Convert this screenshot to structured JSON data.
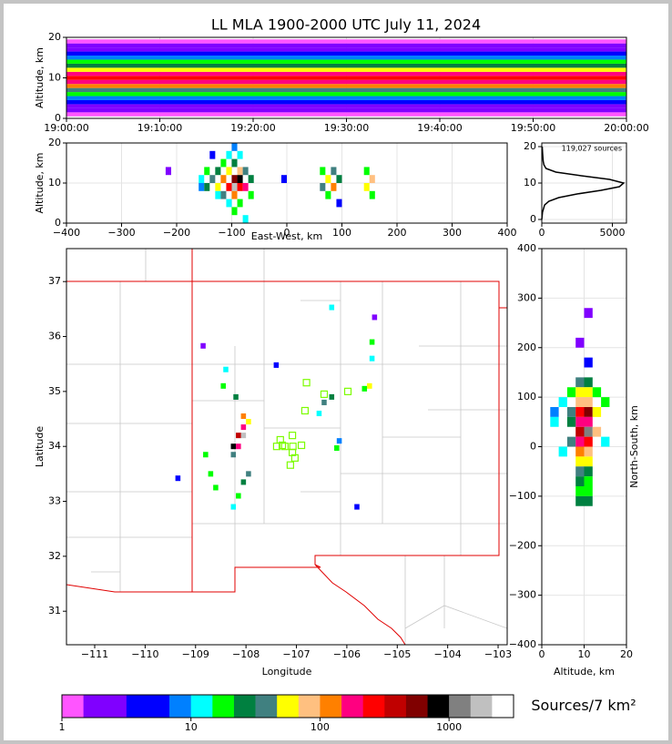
{
  "chart_data": [
    {
      "type": "heatmap",
      "title": "LL MLA 1900-2000 UTC July 11, 2024",
      "ylabel": "Altitude, km",
      "xlim": [
        0,
        60
      ],
      "xticks": [
        {
          "value": 0,
          "label": "19:00:00"
        },
        {
          "value": 10,
          "label": "19:10:00"
        },
        {
          "value": 20,
          "label": "19:20:00"
        },
        {
          "value": 30,
          "label": "19:30:00"
        },
        {
          "value": 40,
          "label": "19:40:00"
        },
        {
          "value": 50,
          "label": "19:50:00"
        },
        {
          "value": 60,
          "label": "20:00:00"
        }
      ],
      "ylim": [
        0,
        20
      ],
      "yticks": [
        0,
        10,
        20
      ],
      "grid": true,
      "cells": {
        "y": [
          1,
          2,
          3,
          4,
          5,
          6,
          7,
          8,
          9,
          10,
          11,
          12,
          13,
          14,
          15,
          16,
          17,
          18,
          19
        ],
        "values": [
          1,
          2,
          3,
          5,
          8,
          15,
          40,
          100,
          200,
          300,
          150,
          60,
          30,
          15,
          8,
          5,
          3,
          2,
          1
        ]
      }
    },
    {
      "type": "heatmap",
      "xlabel": "East-West, km",
      "ylabel": "Altitude, km",
      "xlim": [
        -400,
        400
      ],
      "xticks": [
        {
          "value": -400,
          "label": "−400"
        },
        {
          "value": -300,
          "label": "−300"
        },
        {
          "value": -200,
          "label": "−200"
        },
        {
          "value": -100,
          "label": "−100"
        },
        0,
        100,
        200,
        300,
        400
      ],
      "ylim": [
        0,
        20
      ],
      "yticks": [
        0,
        10,
        20
      ],
      "grid": true,
      "cells": {
        "x": [
          -155,
          -155,
          -145,
          -145,
          -135,
          -135,
          -125,
          -125,
          -125,
          -115,
          -115,
          -115,
          -105,
          -105,
          -105,
          -105,
          -95,
          -95,
          -95,
          -95,
          -95,
          -95,
          -85,
          -85,
          -85,
          -85,
          -85,
          -75,
          -75,
          -75,
          -65,
          -65,
          -5,
          65,
          65,
          75,
          75,
          85,
          85,
          95,
          95,
          145,
          145,
          155,
          155,
          -215
        ],
        "y": [
          11,
          9,
          13,
          9,
          17,
          11,
          13,
          9,
          7,
          15,
          11,
          7,
          17,
          13,
          9,
          5,
          19,
          15,
          11,
          9,
          7,
          3,
          17,
          13,
          11,
          9,
          5,
          13,
          9,
          1,
          11,
          7,
          11,
          13,
          9,
          11,
          7,
          13,
          9,
          11,
          5,
          13,
          9,
          11,
          7,
          13
        ],
        "values": [
          10,
          8,
          20,
          30,
          5,
          40,
          30,
          60,
          10,
          20,
          120,
          40,
          10,
          60,
          300,
          10,
          8,
          30,
          500,
          1500,
          120,
          15,
          10,
          80,
          800,
          300,
          20,
          40,
          200,
          10,
          30,
          15,
          6,
          15,
          40,
          60,
          20,
          40,
          120,
          30,
          5,
          20,
          50,
          80,
          20,
          3
        ]
      }
    },
    {
      "type": "line",
      "annotation": "119,027 sources",
      "color": "#000000",
      "xlim": [
        0,
        6000
      ],
      "xticks": [
        0,
        5000
      ],
      "ylim": [
        -1,
        21
      ],
      "yticks": [
        0,
        10,
        20
      ],
      "grid": true,
      "altitudes": [
        0,
        2,
        4,
        5,
        6,
        7,
        8,
        9,
        10,
        11,
        12,
        13,
        14,
        15,
        16,
        18,
        20
      ],
      "values": [
        0,
        50,
        200,
        500,
        1200,
        2500,
        4200,
        5500,
        5800,
        4800,
        2800,
        1000,
        300,
        150,
        100,
        60,
        30
      ]
    },
    {
      "type": "heatmap",
      "xlabel": "Longitude",
      "ylabel": "Latitude",
      "xlim": [
        -111.56,
        -102.82
      ],
      "xticks": [
        {
          "value": -111,
          "label": "−111"
        },
        {
          "value": -110,
          "label": "−110"
        },
        {
          "value": -109,
          "label": "−109"
        },
        {
          "value": -108,
          "label": "−108"
        },
        {
          "value": -107,
          "label": "−107"
        },
        {
          "value": -106,
          "label": "−106"
        },
        {
          "value": -105,
          "label": "−105"
        },
        {
          "value": -104,
          "label": "−104"
        },
        {
          "value": -103,
          "label": "−103"
        }
      ],
      "ylim": [
        30.39,
        37.6
      ],
      "yticks": [
        31,
        32,
        33,
        34,
        35,
        36,
        37
      ],
      "grid": false,
      "cells": {
        "x": [
          -108.05,
          -108.15,
          -108.25,
          -108.15,
          -108.05,
          -108.05,
          -107.95,
          -108.25,
          -107.95,
          -108.05,
          -108.15,
          -108.25,
          -108.8,
          -108.7,
          -108.6,
          -108.2,
          -108.45,
          -108.4,
          -106.45,
          -106.3,
          -106.55,
          -105.55,
          -105.65,
          -105.5,
          -105.5,
          -106.3,
          -106.2,
          -106.15,
          -105.8,
          -107.4,
          -108.85,
          -109.35,
          -105.45
        ],
        "y": [
          34.2,
          34.2,
          34.0,
          34.0,
          34.35,
          34.55,
          34.45,
          33.85,
          33.5,
          33.35,
          33.1,
          32.9,
          33.85,
          33.5,
          33.25,
          34.9,
          35.1,
          35.4,
          34.8,
          34.9,
          34.6,
          35.1,
          35.05,
          35.9,
          35.6,
          36.53,
          33.97,
          34.1,
          32.9,
          35.48,
          35.83,
          33.42,
          36.35
        ],
        "values": [
          2000,
          400,
          800,
          200,
          150,
          100,
          60,
          40,
          40,
          30,
          20,
          10,
          20,
          15,
          20,
          30,
          15,
          10,
          40,
          30,
          10,
          50,
          20,
          15,
          10,
          10,
          20,
          8,
          5,
          5,
          3,
          4,
          2
        ]
      },
      "stations": {
        "color": "#7cfc00",
        "x": [
          -106.8,
          -106.45,
          -105.98,
          -106.83,
          -107.08,
          -107.32,
          -107.39,
          -107.23,
          -107.07,
          -106.9,
          -107.08,
          -107.03,
          -107.12,
          -107.28
        ],
        "y": [
          35.16,
          34.95,
          35.0,
          34.65,
          34.2,
          34.12,
          34.0,
          34.0,
          34.0,
          34.02,
          33.89,
          33.79,
          33.66,
          34.02
        ]
      }
    },
    {
      "type": "heatmap",
      "xlabel": "Altitude, km",
      "ylabel": "North-South, km",
      "xlim": [
        0,
        20
      ],
      "xticks": [
        0,
        10,
        20
      ],
      "ylim": [
        -400,
        400
      ],
      "yticks": [
        {
          "value": -400,
          "label": "−400"
        },
        {
          "value": -300,
          "label": "−300"
        },
        {
          "value": -200,
          "label": "−200"
        },
        {
          "value": -100,
          "label": "−100"
        },
        0,
        100,
        200,
        300,
        400
      ],
      "grid": true,
      "cells": {
        "x": [
          9,
          11,
          7,
          9,
          11,
          13,
          5,
          9,
          11,
          15,
          3,
          7,
          9,
          11,
          13,
          9,
          11,
          7,
          3,
          9,
          11,
          13,
          7,
          9,
          11,
          15,
          9,
          11,
          5,
          9,
          11,
          9,
          11,
          9,
          11,
          9,
          11,
          9,
          11,
          11,
          9,
          11
        ],
        "y": [
          130,
          130,
          110,
          110,
          110,
          110,
          90,
          90,
          90,
          90,
          70,
          70,
          70,
          70,
          70,
          50,
          50,
          50,
          50,
          30,
          30,
          30,
          10,
          10,
          10,
          10,
          -10,
          -10,
          -10,
          -30,
          -30,
          -50,
          -50,
          -70,
          -70,
          -90,
          -90,
          -110,
          -110,
          170,
          210,
          270
        ],
        "values": [
          40,
          30,
          15,
          60,
          50,
          20,
          10,
          80,
          70,
          15,
          8,
          40,
          300,
          500,
          60,
          200,
          150,
          30,
          10,
          400,
          1000,
          80,
          40,
          200,
          300,
          10,
          120,
          80,
          10,
          60,
          60,
          40,
          30,
          30,
          20,
          15,
          20,
          30,
          25,
          5,
          3,
          2
        ]
      }
    },
    {
      "type": "colorbar",
      "label": "Sources/7 km²",
      "log": true,
      "xlim": [
        1,
        3162
      ],
      "xticks": [
        1,
        10,
        100,
        1000
      ],
      "colors": [
        "#ff55ff",
        "#8000ff",
        "#8000ff",
        "#0000ff",
        "#0000ff",
        "#0080ff",
        "#00ffff",
        "#00ff00",
        "#008040",
        "#408080",
        "#ffff00",
        "#ffc080",
        "#ff8000",
        "#ff0080",
        "#ff0000",
        "#c00000",
        "#800000",
        "#000000",
        "#808080",
        "#c0c0c0",
        "#ffffff"
      ]
    }
  ]
}
